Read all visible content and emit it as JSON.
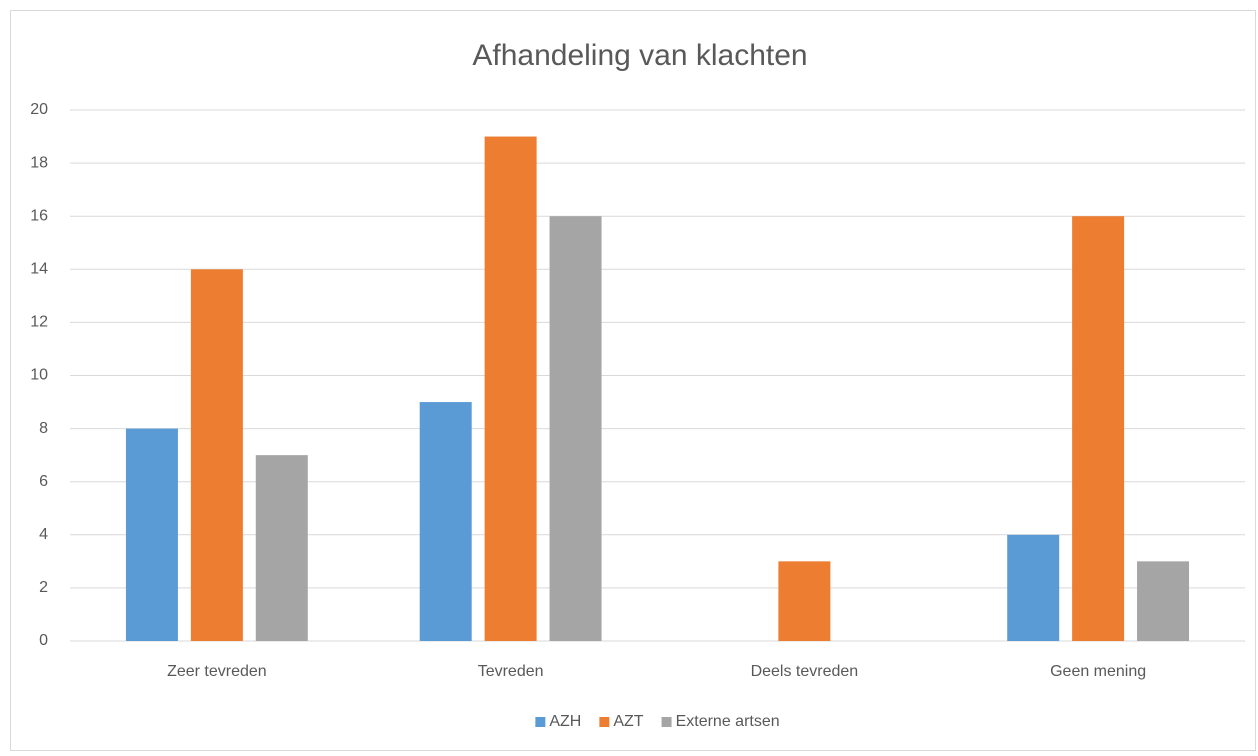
{
  "chart_data": {
    "type": "bar",
    "title": "Afhandeling van klachten",
    "categories": [
      "Zeer tevreden",
      "Tevreden",
      "Deels tevreden",
      "Geen mening"
    ],
    "series": [
      {
        "name": "AZH",
        "color": "#5b9bd5",
        "values": [
          8,
          9,
          0,
          4
        ]
      },
      {
        "name": "AZT",
        "color": "#ed7d31",
        "values": [
          14,
          19,
          3,
          16
        ]
      },
      {
        "name": "Externe artsen",
        "color": "#a5a5a5",
        "values": [
          7,
          16,
          0,
          3
        ]
      }
    ],
    "ylim": [
      0,
      20
    ],
    "yticks": [
      0,
      2,
      4,
      6,
      8,
      10,
      12,
      14,
      16,
      18,
      20
    ],
    "grid": true,
    "legend": "bottom"
  }
}
